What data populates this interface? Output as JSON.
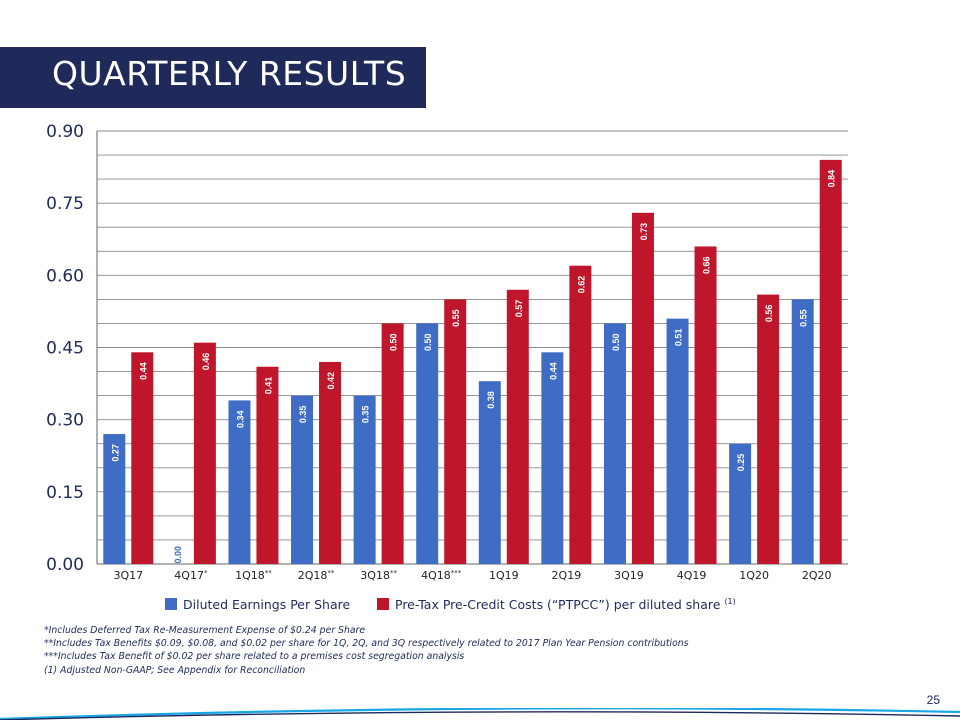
{
  "slide": {
    "title": "QUARTERLY RESULTS",
    "page_number": "25"
  },
  "colors": {
    "title_band": "#1f2a5a",
    "series_blue": "#3f6cc4",
    "series_red": "#c0162c",
    "grid": "#8a8a8a",
    "text": "#1f2a5a",
    "accent_line": "#19a7e6"
  },
  "legend": {
    "eps_label": "Diluted Earnings Per Share",
    "ptpcc_label": "Pre-Tax Pre-Credit Costs (“PTPCC”) per diluted share",
    "ptpcc_note": "(1)"
  },
  "footnotes": [
    "*Includes Deferred Tax Re-Measurement Expense of $0.24 per Share",
    "**Includes Tax Benefits $0.09, $0.08, and $0.02 per share for 1Q, 2Q, and 3Q respectively related to 2017 Plan Year Pension contributions",
    "***Includes Tax Benefit of $0.02 per share related to a premises cost segregation analysis",
    "(1) Adjusted Non-GAAP; See Appendix for Reconciliation"
  ],
  "chart_data": {
    "type": "bar",
    "categories": [
      "3Q17",
      "4Q17*",
      "1Q18**",
      "2Q18**",
      "3Q18**",
      "4Q18***",
      "1Q19",
      "2Q19",
      "3Q19",
      "4Q19",
      "1Q20",
      "2Q20"
    ],
    "series": [
      {
        "name": "Diluted Earnings Per Share",
        "values": [
          0.27,
          0.0,
          0.34,
          0.35,
          0.35,
          0.5,
          0.38,
          0.44,
          0.5,
          0.51,
          0.25,
          0.55
        ]
      },
      {
        "name": "Pre-Tax Pre-Credit Costs (“PTPCC”) per diluted share (1)",
        "values": [
          0.44,
          0.46,
          0.41,
          0.42,
          0.5,
          0.55,
          0.57,
          0.62,
          0.73,
          0.66,
          0.56,
          0.84
        ]
      }
    ],
    "data_labels": [
      [
        "0.27",
        "0.00",
        "0.34",
        "0.35",
        "0.35",
        "0.50",
        "0.38",
        "0.44",
        "0.50",
        "0.51",
        "0.25",
        "0.55"
      ],
      [
        "0.44",
        "0.46",
        "0.41",
        "0.42",
        "0.50",
        "0.55",
        "0.57",
        "0.62",
        "0.73",
        "0.66",
        "0.56",
        "0.84"
      ]
    ],
    "y_ticks": [
      "0.00",
      "0.15",
      "0.30",
      "0.45",
      "0.60",
      "0.75",
      "0.90"
    ],
    "ylim": [
      0,
      0.9
    ],
    "grid": true,
    "legend_position": "bottom"
  }
}
